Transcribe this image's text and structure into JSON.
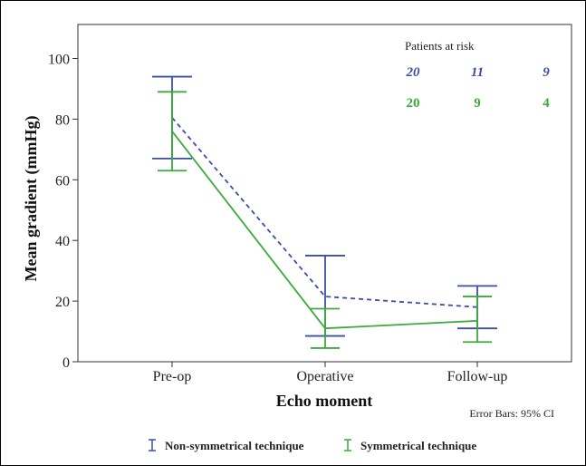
{
  "chart_data": {
    "type": "line",
    "xlabel": "Echo moment",
    "ylabel": "Mean gradient (mmHg)",
    "categories": [
      "Pre-op",
      "Operative",
      "Follow-up"
    ],
    "ylim": [
      0,
      110
    ],
    "yticks": [
      0,
      20,
      40,
      60,
      80,
      100
    ],
    "grid": false,
    "legend_position": "bottom",
    "series": [
      {
        "name": "Non-symmetrical technique",
        "color": "#3a4fa5",
        "line_style": "dashed",
        "values": [
          80.5,
          21.5,
          18
        ],
        "ci_low": [
          67,
          8.5,
          11
        ],
        "ci_high": [
          94,
          35,
          25
        ]
      },
      {
        "name": "Symmetrical technique",
        "color": "#3bab3a",
        "line_style": "solid",
        "values": [
          76,
          11,
          13.5
        ],
        "ci_low": [
          63,
          4.5,
          6.5
        ],
        "ci_high": [
          89,
          17.5,
          21.5
        ]
      }
    ],
    "annotations": {
      "patients_at_risk_title": "Patients at risk",
      "patients_at_risk": [
        {
          "values": [
            "20",
            "11",
            "9"
          ]
        },
        {
          "values": [
            "20",
            "9",
            "4"
          ]
        }
      ],
      "error_bars_note": "Error Bars: 95% CI"
    }
  }
}
